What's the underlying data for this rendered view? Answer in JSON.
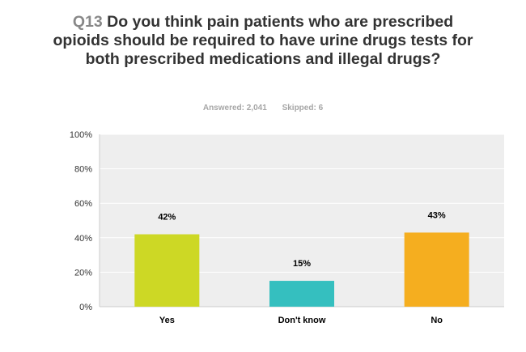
{
  "question": {
    "number": "Q13",
    "text": "Do you think pain patients who are prescribed opioids should be required to have urine drugs tests for both prescribed medications and illegal drugs?"
  },
  "stats": {
    "answered": "Answered: 2,041",
    "skipped": "Skipped: 6"
  },
  "colors": {
    "plot_bg": "#eeeeee",
    "grid": "#ffffff",
    "axis": "#cccccc"
  },
  "chart_data": {
    "type": "bar",
    "categories": [
      "Yes",
      "Don't know",
      "No"
    ],
    "values": [
      42,
      15,
      43
    ],
    "data_labels": [
      "42%",
      "15%",
      "43%"
    ],
    "bar_colors": [
      "#cdd825",
      "#35bfbf",
      "#f5ae1f"
    ],
    "yticks": [
      "0%",
      "20%",
      "40%",
      "60%",
      "80%",
      "100%"
    ],
    "ylim": [
      0,
      100
    ],
    "grid": true,
    "legend": "none"
  }
}
